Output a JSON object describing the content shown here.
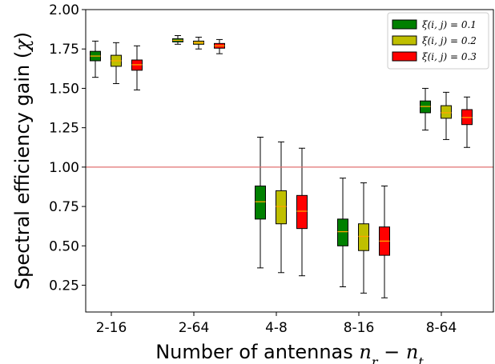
{
  "chart_data": {
    "type": "box",
    "xlabel": "Number of antennas n_r − n_t",
    "ylabel": "Spectral efficiency gain (χ)",
    "ylim": [
      0.08,
      2.0
    ],
    "yticks": [
      0.25,
      0.5,
      0.75,
      1.0,
      1.25,
      1.5,
      1.75,
      2.0
    ],
    "ytick_labels": [
      "0.25",
      "0.50",
      "0.75",
      "1.00",
      "1.25",
      "1.50",
      "1.75",
      "2.00"
    ],
    "categories": [
      "2-16",
      "2-64",
      "4-8",
      "8-16",
      "8-64"
    ],
    "reference_line": {
      "y": 1.0,
      "color": "#e07070"
    },
    "legend_position": "top-right",
    "grid": false,
    "series": [
      {
        "name": "ξ(i, j) = 0.1",
        "color": "#008000",
        "boxes": [
          {
            "whislo": 1.57,
            "q1": 1.675,
            "med": 1.705,
            "q3": 1.735,
            "whishi": 1.8
          },
          {
            "whislo": 1.78,
            "q1": 1.795,
            "med": 1.805,
            "q3": 1.815,
            "whishi": 1.835
          },
          {
            "whislo": 0.36,
            "q1": 0.67,
            "med": 0.78,
            "q3": 0.88,
            "whishi": 1.19
          },
          {
            "whislo": 0.24,
            "q1": 0.5,
            "med": 0.59,
            "q3": 0.67,
            "whishi": 0.93
          },
          {
            "whislo": 1.235,
            "q1": 1.345,
            "med": 1.385,
            "q3": 1.42,
            "whishi": 1.5
          }
        ]
      },
      {
        "name": "ξ(i, j) = 0.2",
        "color": "#bfbf00",
        "boxes": [
          {
            "whislo": 1.53,
            "q1": 1.64,
            "med": 1.675,
            "q3": 1.71,
            "whishi": 1.79
          },
          {
            "whislo": 1.75,
            "q1": 1.78,
            "med": 1.79,
            "q3": 1.8,
            "whishi": 1.825
          },
          {
            "whislo": 0.33,
            "q1": 0.64,
            "med": 0.75,
            "q3": 0.85,
            "whishi": 1.16
          },
          {
            "whislo": 0.2,
            "q1": 0.47,
            "med": 0.56,
            "q3": 0.64,
            "whishi": 0.9
          },
          {
            "whislo": 1.175,
            "q1": 1.31,
            "med": 1.345,
            "q3": 1.39,
            "whishi": 1.475
          }
        ]
      },
      {
        "name": "ξ(i, j) = 0.3",
        "color": "#ff0000",
        "boxes": [
          {
            "whislo": 1.49,
            "q1": 1.615,
            "med": 1.65,
            "q3": 1.68,
            "whishi": 1.77
          },
          {
            "whislo": 1.72,
            "q1": 1.755,
            "med": 1.77,
            "q3": 1.785,
            "whishi": 1.81
          },
          {
            "whislo": 0.31,
            "q1": 0.61,
            "med": 0.72,
            "q3": 0.82,
            "whishi": 1.12
          },
          {
            "whislo": 0.17,
            "q1": 0.44,
            "med": 0.53,
            "q3": 0.62,
            "whishi": 0.88
          },
          {
            "whislo": 1.125,
            "q1": 1.27,
            "med": 1.315,
            "q3": 1.365,
            "whishi": 1.445
          }
        ]
      }
    ]
  }
}
